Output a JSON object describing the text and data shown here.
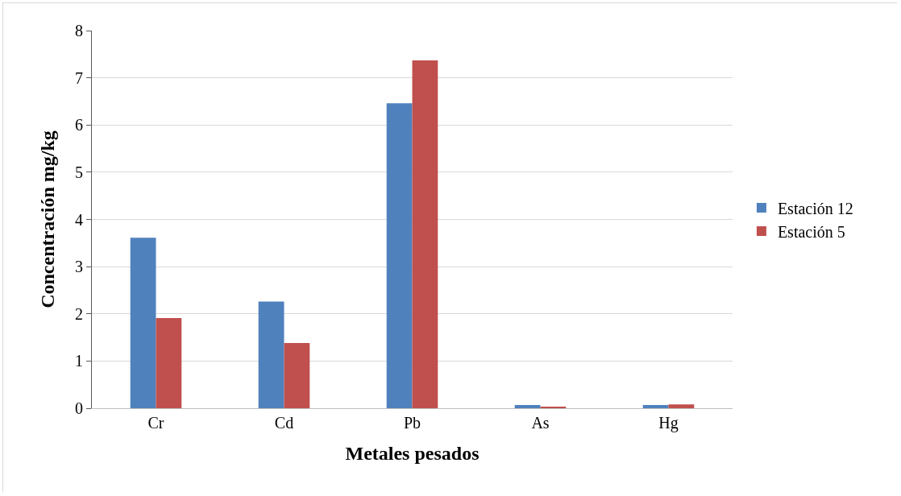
{
  "chart_data": {
    "type": "bar",
    "xlabel": "Metales pesados",
    "ylabel": "Concentración mg/kg",
    "categories": [
      "Cr",
      "Cd",
      "Pb",
      "As",
      "Hg"
    ],
    "series": [
      {
        "name": "Estación 12",
        "color": "#4f81bd",
        "values": [
          3.61,
          2.26,
          6.46,
          0.07,
          0.07
        ]
      },
      {
        "name": "Estación 5",
        "color": "#c0504d",
        "values": [
          1.91,
          1.38,
          7.37,
          0.03,
          0.08
        ]
      }
    ],
    "ylim": [
      0,
      8
    ],
    "yticks": [
      0,
      1,
      2,
      3,
      4,
      5,
      6,
      7,
      8
    ],
    "grid": "y",
    "legend": "right"
  }
}
